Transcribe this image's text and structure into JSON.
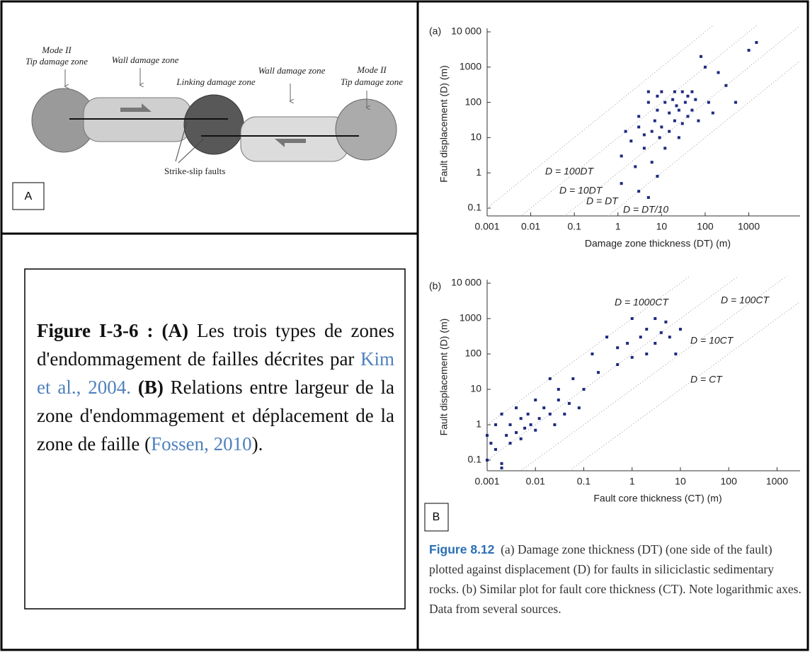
{
  "diagram": {
    "labels": [
      "Mode II",
      "Tip damage zone",
      "Wall damage zone",
      "Linking damage zone",
      "Wall damage zone",
      "Mode II",
      "Tip damage zone",
      "Strike-slip faults"
    ],
    "panel_label": "A"
  },
  "caption_fr": [
    "Figure I-3-6 : (A)",
    " Les trois types de zones d'endommagement de failles décrites par ",
    "Kim et al., 2004.",
    " (B)",
    " Relations entre largeur de la zone d'endommagement et déplacement de la zone de faille (",
    "Fossen, 2010",
    ")."
  ],
  "chart_data": [
    {
      "type": "scatter",
      "panel": "(a)",
      "xlabel": "Damage zone thickness (DT) (m)",
      "ylabel": "Fault displacement (D) (m)",
      "log_scale": true,
      "color": "#1d2a7e",
      "xlim": [
        0.001,
        15000
      ],
      "ylim": [
        0.06,
        10000
      ],
      "xticks": [
        0.001,
        0.01,
        0.1,
        1,
        10,
        100,
        1000
      ],
      "yticks": [
        0.1,
        1,
        10,
        100,
        1000,
        {
          "value": 10000,
          "label": "10 000"
        }
      ],
      "annotations": [
        {
          "text": "D = 100DT",
          "ratio": 100
        },
        {
          "text": "D = 10DT",
          "ratio": 10
        },
        {
          "text": "D = DT",
          "ratio": 1
        },
        {
          "text": "D = DT/10",
          "ratio": 0.1
        }
      ],
      "x": [
        1.2,
        1.5,
        2,
        2.5,
        3,
        3,
        4,
        4,
        5,
        5,
        6,
        6,
        7,
        8,
        8,
        9,
        10,
        10,
        12,
        12,
        15,
        15,
        18,
        20,
        20,
        22,
        25,
        25,
        30,
        30,
        35,
        40,
        40,
        50,
        50,
        60,
        70,
        80,
        100,
        120,
        150,
        200,
        300,
        500,
        1000,
        1500,
        1.2,
        3,
        5,
        8
      ],
      "values": [
        3,
        15,
        8,
        1.5,
        20,
        40,
        12,
        5,
        100,
        200,
        15,
        2,
        30,
        150,
        60,
        10,
        20,
        200,
        100,
        5,
        50,
        15,
        120,
        200,
        30,
        80,
        60,
        10,
        200,
        25,
        100,
        150,
        40,
        200,
        60,
        120,
        30,
        2000,
        1000,
        100,
        50,
        700,
        300,
        100,
        3000,
        5000,
        0.5,
        0.3,
        0.2,
        0.8
      ]
    },
    {
      "type": "scatter",
      "panel": "(b)",
      "xlabel": "Fault core thickness (CT) (m)",
      "ylabel": "Fault displacement (D) (m)",
      "log_scale": true,
      "color": "#1d2a7e",
      "xlim": [
        0.001,
        3000
      ],
      "ylim": [
        0.05,
        10000
      ],
      "xticks": [
        0.001,
        0.01,
        0.1,
        1,
        10,
        100,
        1000
      ],
      "yticks": [
        0.1,
        1,
        10,
        100,
        1000,
        {
          "value": 10000,
          "label": "10 000"
        }
      ],
      "annotations": [
        {
          "text": "D = 1000CT",
          "ratio": 1000
        },
        {
          "text": "D = 100CT",
          "ratio": 100
        },
        {
          "text": "D = 10CT",
          "ratio": 10
        },
        {
          "text": "D = CT",
          "ratio": 1
        }
      ],
      "x": [
        0.001,
        0.001,
        0.0012,
        0.0015,
        0.0015,
        0.002,
        0.002,
        0.0025,
        0.003,
        0.003,
        0.004,
        0.004,
        0.005,
        0.005,
        0.006,
        0.007,
        0.008,
        0.01,
        0.01,
        0.012,
        0.015,
        0.02,
        0.02,
        0.025,
        0.03,
        0.03,
        0.04,
        0.05,
        0.06,
        0.08,
        0.1,
        0.15,
        0.2,
        0.3,
        0.5,
        0.5,
        0.8,
        1,
        1,
        1.5,
        2,
        2,
        3,
        3,
        4,
        5,
        6,
        8,
        10,
        0.002
      ],
      "values": [
        0.1,
        0.5,
        0.3,
        1,
        0.2,
        0.08,
        2,
        0.5,
        1,
        0.3,
        3,
        0.6,
        1.5,
        0.4,
        0.8,
        2,
        1,
        5,
        0.7,
        1.5,
        3,
        2,
        20,
        1,
        5,
        10,
        2,
        4,
        20,
        3,
        10,
        100,
        30,
        300,
        50,
        150,
        200,
        1000,
        80,
        300,
        100,
        500,
        1000,
        200,
        400,
        800,
        300,
        100,
        500,
        0.06
      ]
    }
  ],
  "panel_b_label": "B",
  "caption_en": {
    "label": "Figure 8.12",
    "text": "(a) Damage zone thickness (DT) (one side of the fault) plotted against displacement (D) for faults in siliciclastic sedimentary rocks. (b) Similar plot for fault core thickness (CT). Note logarithmic axes. Data from several sources."
  }
}
